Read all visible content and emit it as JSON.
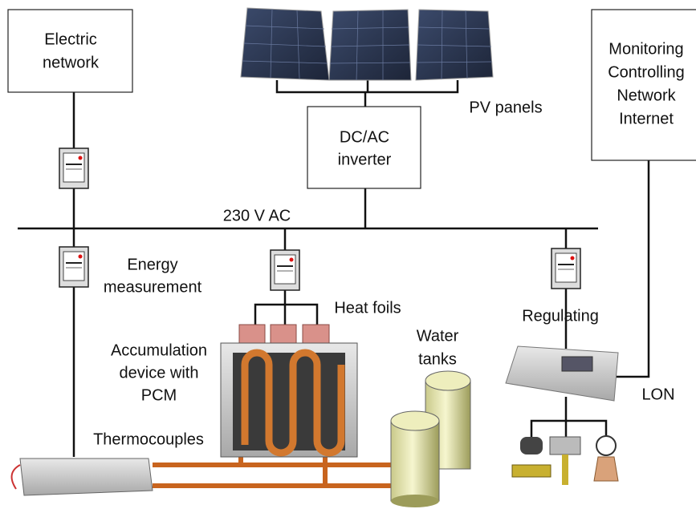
{
  "labels": {
    "electric_network": [
      "Electric",
      "network"
    ],
    "pv_panels": "PV panels",
    "inverter": [
      "DC/AC",
      "inverter"
    ],
    "monitoring": [
      "Monitoring",
      "Controlling",
      "Network",
      "Internet"
    ],
    "bus": "230 V AC",
    "energy_measurement": [
      "Energy",
      "measurement"
    ],
    "heat_foils": "Heat foils",
    "water_tanks": [
      "Water",
      "tanks"
    ],
    "regulating": "Regulating",
    "accumulation": [
      "Accumulation",
      "device with",
      "PCM"
    ],
    "thermocouples": "Thermocouples",
    "lon": "LON"
  }
}
